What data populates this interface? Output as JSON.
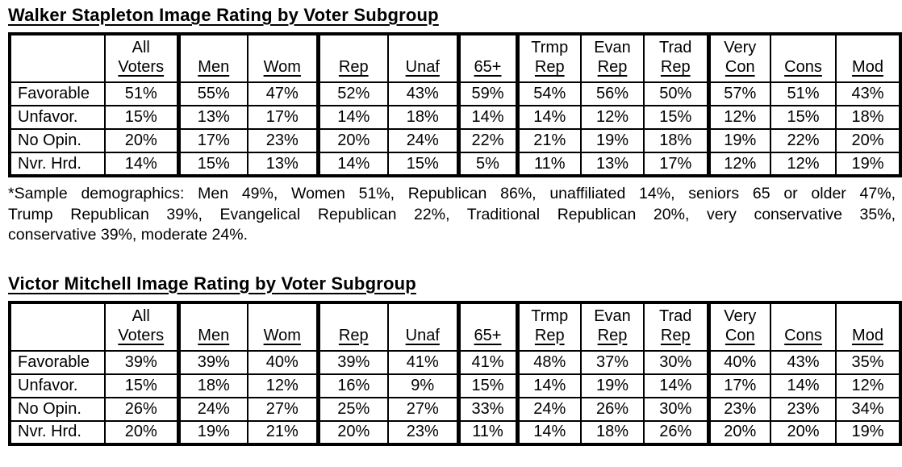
{
  "page": {
    "background_color": "#ffffff",
    "text_color": "#000000"
  },
  "tables": [
    {
      "title": "Walker Stapleton Image Rating by Voter Subgroup",
      "column_headers": [
        {
          "line1": "",
          "line2": ""
        },
        {
          "line1": "All",
          "line2": "Voters"
        },
        {
          "line1": "",
          "line2": "Men"
        },
        {
          "line1": "",
          "line2": "Wom"
        },
        {
          "line1": "",
          "line2": "Rep"
        },
        {
          "line1": "",
          "line2": "Unaf"
        },
        {
          "line1": "",
          "line2": "65+"
        },
        {
          "line1": "Trmp",
          "line2": "Rep"
        },
        {
          "line1": "Evan",
          "line2": "Rep"
        },
        {
          "line1": "Trad",
          "line2": "Rep"
        },
        {
          "line1": "Very",
          "line2": "Con"
        },
        {
          "line1": "",
          "line2": "Cons"
        },
        {
          "line1": "",
          "line2": "Mod"
        }
      ],
      "rows": [
        {
          "label": "Favorable",
          "values": [
            "51%",
            "55%",
            "47%",
            "52%",
            "43%",
            "59%",
            "54%",
            "56%",
            "50%",
            "57%",
            "51%",
            "43%"
          ]
        },
        {
          "label": "Unfavor.",
          "values": [
            "15%",
            "13%",
            "17%",
            "14%",
            "18%",
            "14%",
            "14%",
            "12%",
            "15%",
            "12%",
            "15%",
            "18%"
          ]
        },
        {
          "label": "No Opin.",
          "values": [
            "20%",
            "17%",
            "23%",
            "20%",
            "24%",
            "22%",
            "21%",
            "19%",
            "18%",
            "19%",
            "22%",
            "20%"
          ]
        },
        {
          "label": "Nvr. Hrd.",
          "values": [
            "14%",
            "15%",
            "13%",
            "14%",
            "15%",
            "5%",
            "11%",
            "13%",
            "17%",
            "12%",
            "12%",
            "19%"
          ]
        }
      ]
    },
    {
      "title": "Victor Mitchell Image Rating by Voter Subgroup",
      "column_headers": [
        {
          "line1": "",
          "line2": ""
        },
        {
          "line1": "All",
          "line2": "Voters"
        },
        {
          "line1": "",
          "line2": "Men"
        },
        {
          "line1": "",
          "line2": "Wom"
        },
        {
          "line1": "",
          "line2": "Rep"
        },
        {
          "line1": "",
          "line2": "Unaf"
        },
        {
          "line1": "",
          "line2": "65+"
        },
        {
          "line1": "Trmp",
          "line2": "Rep"
        },
        {
          "line1": "Evan",
          "line2": "Rep"
        },
        {
          "line1": "Trad",
          "line2": "Rep"
        },
        {
          "line1": "Very",
          "line2": "Con"
        },
        {
          "line1": "",
          "line2": "Cons"
        },
        {
          "line1": "",
          "line2": "Mod"
        }
      ],
      "rows": [
        {
          "label": "Favorable",
          "values": [
            "39%",
            "39%",
            "40%",
            "39%",
            "41%",
            "41%",
            "48%",
            "37%",
            "30%",
            "40%",
            "43%",
            "35%"
          ]
        },
        {
          "label": "Unfavor.",
          "values": [
            "15%",
            "18%",
            "12%",
            "16%",
            "9%",
            "15%",
            "14%",
            "19%",
            "14%",
            "17%",
            "14%",
            "12%"
          ]
        },
        {
          "label": "No Opin.",
          "values": [
            "26%",
            "24%",
            "27%",
            "25%",
            "27%",
            "33%",
            "24%",
            "26%",
            "30%",
            "23%",
            "23%",
            "34%"
          ]
        },
        {
          "label": "Nvr. Hrd.",
          "values": [
            "20%",
            "19%",
            "21%",
            "20%",
            "23%",
            "11%",
            "14%",
            "18%",
            "26%",
            "20%",
            "20%",
            "19%"
          ]
        }
      ]
    }
  ],
  "footnote_lines": [
    "*Sample demographics: Men 49%, Women 51%, Republican 86%, unaffiliated 14%, seniors 65 or older 47%,",
    "Trump Republican 39%, Evangelical Republican 22%, Traditional Republican 20%, very conservative 35%,",
    "conservative 39%, moderate 24%."
  ]
}
